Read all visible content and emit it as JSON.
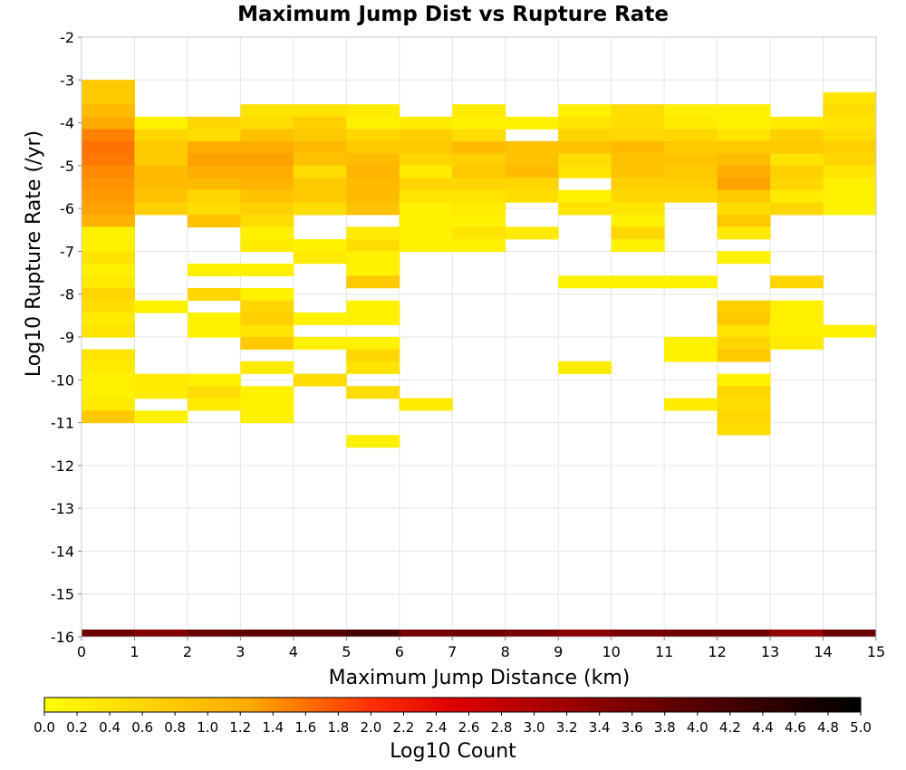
{
  "chart_data": {
    "type": "heatmap",
    "title": "Maximum Jump Dist vs Rupture Rate",
    "xlabel": "Maximum Jump Distance (km)",
    "ylabel": "Log10 Rupture Rate (/yr)",
    "xlim": [
      0,
      15
    ],
    "ylim": [
      -16,
      -2
    ],
    "x_ticks": [
      "0",
      "1",
      "2",
      "3",
      "4",
      "5",
      "6",
      "7",
      "8",
      "9",
      "10",
      "11",
      "12",
      "13",
      "14",
      "15"
    ],
    "y_ticks": [
      "-2",
      "-3",
      "-4",
      "-5",
      "-6",
      "-7",
      "-8",
      "-9",
      "-10",
      "-11",
      "-12",
      "-13",
      "-14",
      "-15",
      "-16"
    ],
    "x_bin_width": 1,
    "y_bin_height": 0.2857,
    "colorbar": {
      "label": "Log10 Count",
      "range": [
        0,
        5
      ],
      "ticks": [
        "0.0",
        "0.2",
        "0.4",
        "0.6",
        "0.8",
        "1.0",
        "1.2",
        "1.4",
        "1.6",
        "1.8",
        "2.0",
        "2.2",
        "2.4",
        "2.6",
        "2.8",
        "3.0",
        "3.2",
        "3.4",
        "3.6",
        "3.8",
        "4.0",
        "4.2",
        "4.4",
        "4.6",
        "4.8",
        "5.0"
      ],
      "colormap": [
        {
          "v": 0.0,
          "color": "#ffff00"
        },
        {
          "v": 1.25,
          "color": "#ffaa00"
        },
        {
          "v": 2.0,
          "color": "#ff3000"
        },
        {
          "v": 2.5,
          "color": "#e00000"
        },
        {
          "v": 3.5,
          "color": "#800000"
        },
        {
          "v": 5.0,
          "color": "#000000"
        }
      ]
    },
    "columns": [
      {
        "x": 0,
        "cells": [
          [
            -3.14,
            0.8
          ],
          [
            -3.43,
            0.8
          ],
          [
            -3.71,
            1.0
          ],
          [
            -4.0,
            1.25
          ],
          [
            -4.29,
            1.5
          ],
          [
            -4.57,
            1.6
          ],
          [
            -4.86,
            1.55
          ],
          [
            -5.14,
            1.45
          ],
          [
            -5.43,
            1.4
          ],
          [
            -5.71,
            1.35
          ],
          [
            -6.0,
            1.3
          ],
          [
            -6.29,
            1.15
          ],
          [
            -6.57,
            0.2
          ],
          [
            -6.86,
            0.2
          ],
          [
            -7.14,
            0.4
          ],
          [
            -7.43,
            0.2
          ],
          [
            -7.71,
            0.3
          ],
          [
            -8.0,
            0.6
          ],
          [
            -8.29,
            0.5
          ],
          [
            -8.57,
            0.3
          ],
          [
            -8.86,
            0.4
          ],
          [
            -9.43,
            0.4
          ],
          [
            -9.71,
            0.3
          ],
          [
            -10.0,
            0.2
          ],
          [
            -10.29,
            0.2
          ],
          [
            -10.57,
            0.3
          ],
          [
            -10.86,
            0.8
          ]
        ]
      },
      {
        "x": 1,
        "cells": [
          [
            -4.0,
            0.2
          ],
          [
            -4.29,
            0.6
          ],
          [
            -4.57,
            0.8
          ],
          [
            -4.86,
            0.8
          ],
          [
            -5.14,
            1.0
          ],
          [
            -5.43,
            1.0
          ],
          [
            -5.71,
            0.9
          ],
          [
            -6.0,
            0.7
          ],
          [
            -8.29,
            0.2
          ],
          [
            -10.0,
            0.3
          ],
          [
            -10.29,
            0.3
          ],
          [
            -10.86,
            0.2
          ]
        ]
      },
      {
        "x": 2,
        "cells": [
          [
            -4.0,
            0.6
          ],
          [
            -4.29,
            0.5
          ],
          [
            -4.57,
            1.2
          ],
          [
            -4.86,
            1.3
          ],
          [
            -5.14,
            1.2
          ],
          [
            -5.43,
            1.0
          ],
          [
            -5.71,
            0.6
          ],
          [
            -6.0,
            0.5
          ],
          [
            -6.29,
            0.9
          ],
          [
            -7.43,
            0.2
          ],
          [
            -8.0,
            0.6
          ],
          [
            -8.57,
            0.2
          ],
          [
            -8.86,
            0.2
          ],
          [
            -10.0,
            0.2
          ],
          [
            -10.29,
            0.5
          ],
          [
            -10.57,
            0.3
          ]
        ]
      },
      {
        "x": 3,
        "cells": [
          [
            -3.71,
            0.4
          ],
          [
            -4.0,
            0.5
          ],
          [
            -4.29,
            0.9
          ],
          [
            -4.57,
            1.2
          ],
          [
            -4.86,
            1.3
          ],
          [
            -5.14,
            1.2
          ],
          [
            -5.43,
            1.1
          ],
          [
            -5.71,
            0.9
          ],
          [
            -6.0,
            0.7
          ],
          [
            -6.29,
            0.5
          ],
          [
            -6.57,
            0.2
          ],
          [
            -6.86,
            0.3
          ],
          [
            -7.43,
            0.2
          ],
          [
            -8.0,
            0.2
          ],
          [
            -8.29,
            0.6
          ],
          [
            -8.57,
            0.7
          ],
          [
            -8.86,
            0.4
          ],
          [
            -9.14,
            0.8
          ],
          [
            -9.71,
            0.3
          ],
          [
            -10.29,
            0.2
          ],
          [
            -10.57,
            0.2
          ],
          [
            -10.86,
            0.2
          ]
        ]
      },
      {
        "x": 4,
        "cells": [
          [
            -3.71,
            0.4
          ],
          [
            -4.0,
            0.7
          ],
          [
            -4.29,
            0.8
          ],
          [
            -4.57,
            1.0
          ],
          [
            -4.86,
            0.9
          ],
          [
            -5.14,
            0.5
          ],
          [
            -5.43,
            0.8
          ],
          [
            -5.71,
            0.8
          ],
          [
            -6.0,
            0.5
          ],
          [
            -6.86,
            0.2
          ],
          [
            -7.14,
            0.3
          ],
          [
            -8.57,
            0.2
          ],
          [
            -9.14,
            0.2
          ],
          [
            -10.0,
            0.5
          ]
        ]
      },
      {
        "x": 5,
        "cells": [
          [
            -3.71,
            0.3
          ],
          [
            -4.0,
            0.2
          ],
          [
            -4.29,
            0.6
          ],
          [
            -4.57,
            0.8
          ],
          [
            -4.86,
            1.0
          ],
          [
            -5.14,
            1.1
          ],
          [
            -5.43,
            1.0
          ],
          [
            -5.71,
            1.0
          ],
          [
            -6.0,
            0.9
          ],
          [
            -6.57,
            0.3
          ],
          [
            -6.86,
            0.5
          ],
          [
            -7.14,
            0.2
          ],
          [
            -7.43,
            0.2
          ],
          [
            -7.71,
            0.8
          ],
          [
            -8.29,
            0.2
          ],
          [
            -8.57,
            0.2
          ],
          [
            -9.14,
            0.2
          ],
          [
            -9.43,
            0.6
          ],
          [
            -9.71,
            0.4
          ],
          [
            -10.29,
            0.5
          ],
          [
            -11.43,
            0.2
          ]
        ]
      },
      {
        "x": 6,
        "cells": [
          [
            -4.0,
            0.3
          ],
          [
            -4.29,
            0.7
          ],
          [
            -4.57,
            0.8
          ],
          [
            -4.86,
            0.6
          ],
          [
            -5.14,
            0.3
          ],
          [
            -5.43,
            0.6
          ],
          [
            -5.71,
            0.4
          ],
          [
            -6.0,
            0.2
          ],
          [
            -6.29,
            0.2
          ],
          [
            -6.57,
            0.2
          ],
          [
            -6.86,
            0.2
          ],
          [
            -10.57,
            0.3
          ]
        ]
      },
      {
        "x": 7,
        "cells": [
          [
            -3.71,
            0.3
          ],
          [
            -4.0,
            0.2
          ],
          [
            -4.29,
            0.5
          ],
          [
            -4.57,
            1.0
          ],
          [
            -4.86,
            0.7
          ],
          [
            -5.14,
            0.8
          ],
          [
            -5.43,
            0.6
          ],
          [
            -5.71,
            0.4
          ],
          [
            -6.0,
            0.3
          ],
          [
            -6.29,
            0.2
          ],
          [
            -6.57,
            0.4
          ],
          [
            -6.86,
            0.2
          ]
        ]
      },
      {
        "x": 8,
        "cells": [
          [
            -4.0,
            0.2
          ],
          [
            -4.57,
            0.9
          ],
          [
            -4.86,
            0.9
          ],
          [
            -5.14,
            1.0
          ],
          [
            -5.43,
            0.6
          ],
          [
            -5.71,
            0.5
          ],
          [
            -6.57,
            0.3
          ]
        ]
      },
      {
        "x": 9,
        "cells": [
          [
            -3.71,
            0.2
          ],
          [
            -4.0,
            0.4
          ],
          [
            -4.29,
            0.6
          ],
          [
            -4.57,
            0.9
          ],
          [
            -4.86,
            0.5
          ],
          [
            -5.14,
            0.4
          ],
          [
            -5.71,
            0.2
          ],
          [
            -6.0,
            0.4
          ],
          [
            -7.71,
            0.2
          ],
          [
            -9.71,
            0.3
          ]
        ]
      },
      {
        "x": 10,
        "cells": [
          [
            -3.71,
            0.5
          ],
          [
            -4.0,
            0.5
          ],
          [
            -4.29,
            0.6
          ],
          [
            -4.57,
            1.0
          ],
          [
            -4.86,
            0.9
          ],
          [
            -5.14,
            0.9
          ],
          [
            -5.43,
            0.7
          ],
          [
            -5.71,
            0.6
          ],
          [
            -6.0,
            0.4
          ],
          [
            -6.29,
            0.2
          ],
          [
            -6.57,
            0.6
          ],
          [
            -6.86,
            0.2
          ],
          [
            -7.71,
            0.2
          ]
        ]
      },
      {
        "x": 11,
        "cells": [
          [
            -3.71,
            0.2
          ],
          [
            -4.0,
            0.3
          ],
          [
            -4.29,
            0.6
          ],
          [
            -4.57,
            0.8
          ],
          [
            -4.86,
            0.9
          ],
          [
            -5.14,
            0.8
          ],
          [
            -5.43,
            0.7
          ],
          [
            -5.71,
            0.6
          ],
          [
            -7.71,
            0.2
          ],
          [
            -9.14,
            0.2
          ],
          [
            -9.43,
            0.2
          ],
          [
            -10.57,
            0.3
          ]
        ]
      },
      {
        "x": 12,
        "cells": [
          [
            -3.71,
            0.2
          ],
          [
            -4.0,
            0.2
          ],
          [
            -4.29,
            0.4
          ],
          [
            -4.57,
            0.8
          ],
          [
            -4.86,
            1.0
          ],
          [
            -5.14,
            1.2
          ],
          [
            -5.43,
            1.3
          ],
          [
            -5.71,
            0.8
          ],
          [
            -6.0,
            0.5
          ],
          [
            -6.29,
            0.8
          ],
          [
            -6.57,
            0.3
          ],
          [
            -7.14,
            0.2
          ],
          [
            -8.29,
            0.7
          ],
          [
            -8.57,
            0.8
          ],
          [
            -8.86,
            0.4
          ],
          [
            -9.14,
            0.6
          ],
          [
            -9.43,
            0.8
          ],
          [
            -10.0,
            0.2
          ],
          [
            -10.29,
            0.6
          ],
          [
            -10.57,
            0.5
          ],
          [
            -10.86,
            0.6
          ],
          [
            -11.14,
            0.5
          ]
        ]
      },
      {
        "x": 13,
        "cells": [
          [
            -4.0,
            0.3
          ],
          [
            -4.29,
            0.7
          ],
          [
            -4.57,
            0.8
          ],
          [
            -4.86,
            0.4
          ],
          [
            -5.14,
            0.7
          ],
          [
            -5.43,
            0.6
          ],
          [
            -5.71,
            0.3
          ],
          [
            -6.0,
            0.6
          ],
          [
            -7.71,
            0.6
          ],
          [
            -8.29,
            0.2
          ],
          [
            -8.57,
            0.2
          ],
          [
            -8.86,
            0.2
          ],
          [
            -9.14,
            0.3
          ]
        ]
      },
      {
        "x": 14,
        "cells": [
          [
            -3.43,
            0.4
          ],
          [
            -3.71,
            0.5
          ],
          [
            -4.0,
            0.4
          ],
          [
            -4.29,
            0.5
          ],
          [
            -4.57,
            0.7
          ],
          [
            -4.86,
            0.6
          ],
          [
            -5.14,
            0.4
          ],
          [
            -5.43,
            0.2
          ],
          [
            -5.71,
            0.2
          ],
          [
            -6.0,
            0.2
          ],
          [
            -8.86,
            0.2
          ]
        ]
      }
    ],
    "bottom_row": {
      "y": -15.93,
      "values": [
        3.7,
        3.5,
        3.8,
        3.9,
        4.0,
        4.2,
        3.6,
        3.7,
        3.6,
        3.4,
        3.6,
        3.7,
        3.7,
        3.3,
        3.8
      ]
    }
  }
}
